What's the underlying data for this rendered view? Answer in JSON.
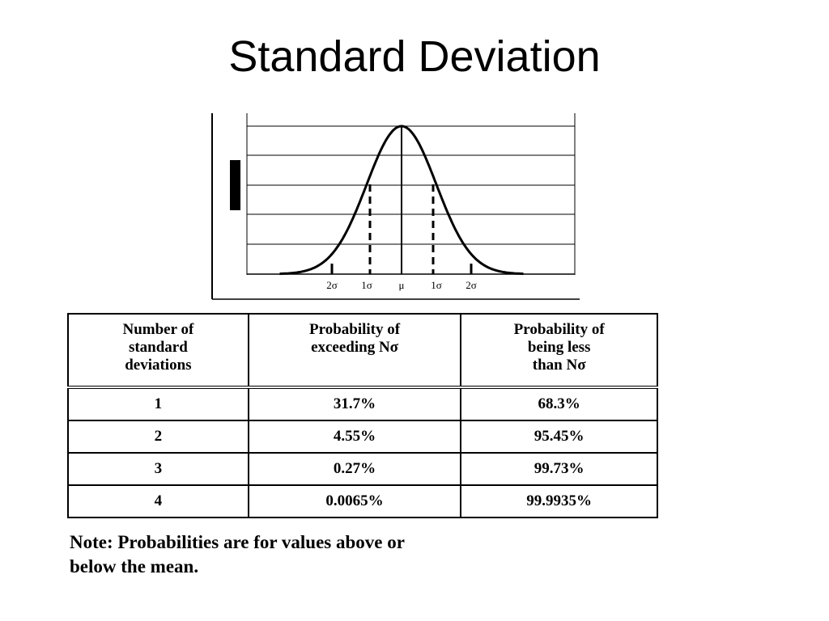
{
  "slide": {
    "title": "Standard Deviation"
  },
  "chart_data": {
    "type": "line",
    "curve": "normal-distribution",
    "tick_labels": [
      "2σ",
      "1σ",
      "μ",
      "1σ",
      "2σ"
    ],
    "tick_values": [
      -2,
      -1,
      0,
      1,
      2
    ],
    "x_range": [
      -3.5,
      3.5
    ],
    "dashed_markers_at": [
      -1,
      1
    ],
    "grid": true,
    "title": "",
    "xlabel": "",
    "ylabel": ""
  },
  "table": {
    "headers": [
      [
        "Number of",
        "standard",
        "deviations"
      ],
      [
        "Probability of",
        "exceeding Nσ"
      ],
      [
        "Probability of",
        "being less",
        "than Nσ"
      ]
    ],
    "rows": [
      [
        "1",
        "31.7%",
        "68.3%"
      ],
      [
        "2",
        "4.55%",
        "95.45%"
      ],
      [
        "3",
        "0.27%",
        "99.73%"
      ],
      [
        "4",
        "0.0065%",
        "99.9935%"
      ]
    ]
  },
  "note": {
    "line1": "Note: Probabilities are for values above or",
    "line2": "below the mean."
  }
}
